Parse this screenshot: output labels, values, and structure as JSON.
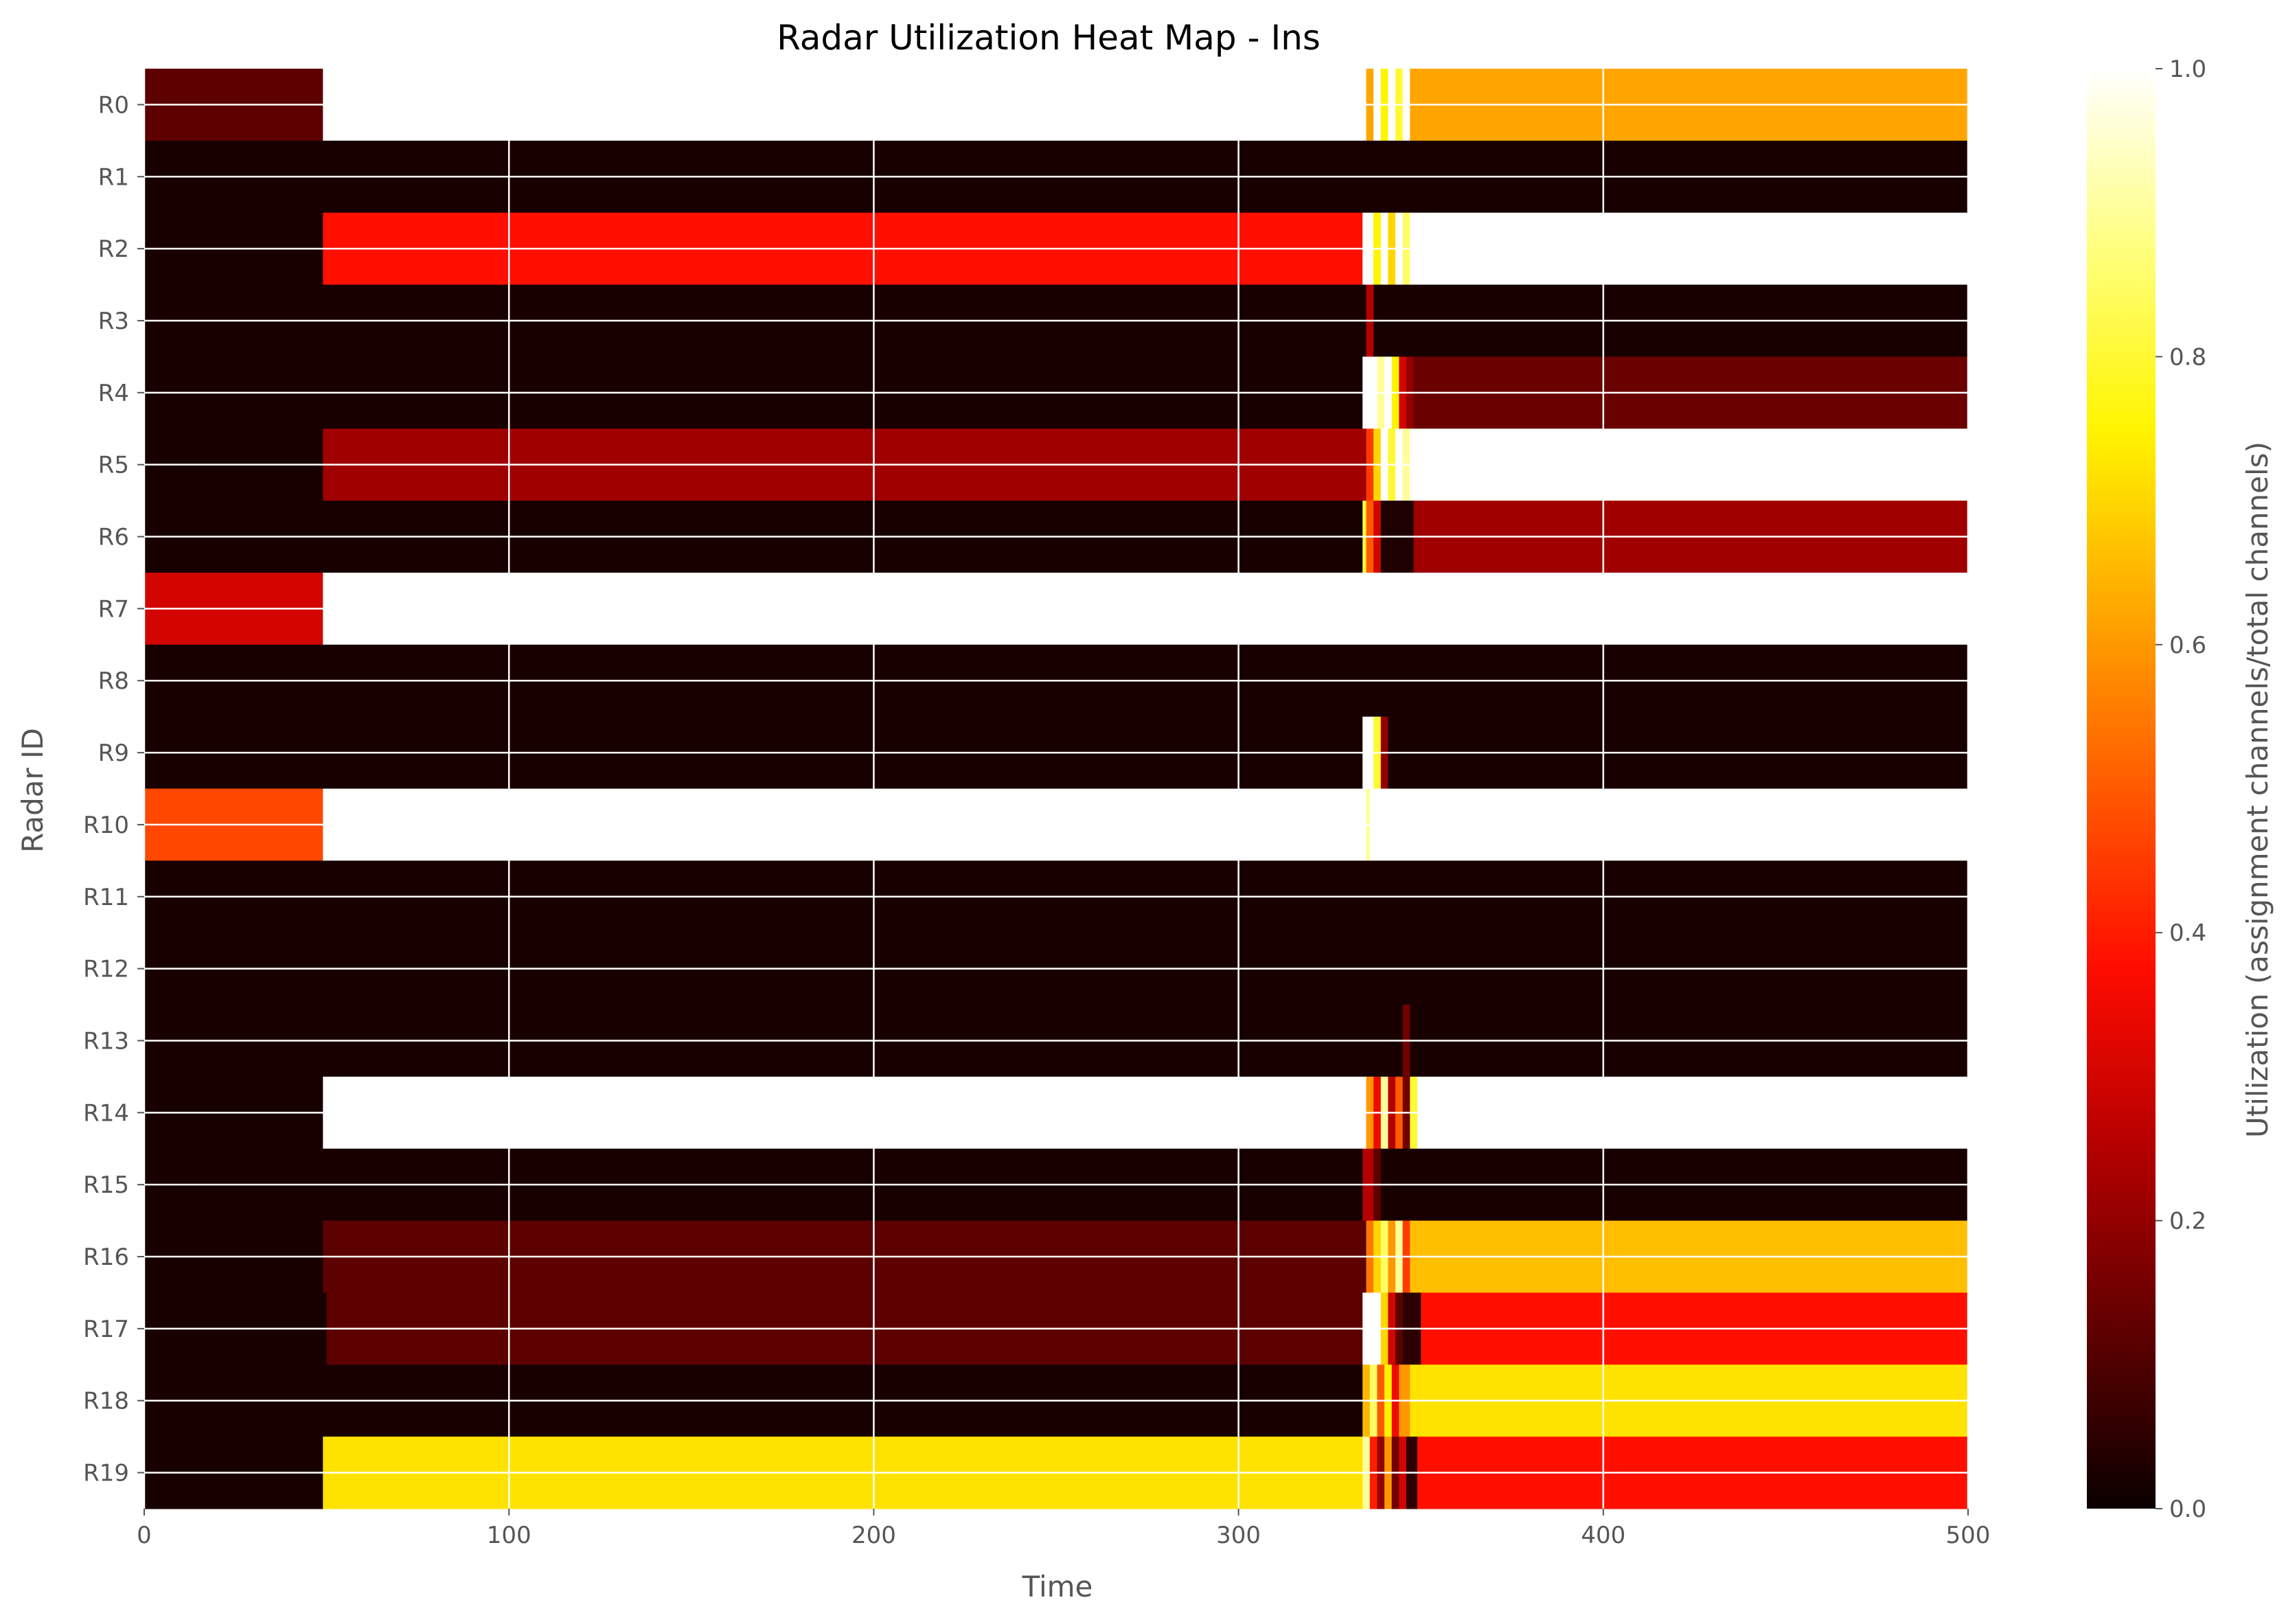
{
  "chart_data": {
    "type": "heatmap",
    "title": "Radar Utilization Heat Map - Ins",
    "xlabel": "Time",
    "ylabel": "Radar ID",
    "colorbar_label": "Utilization (assignment channels/total channels)",
    "colormap": "hot",
    "xlim": [
      0,
      500
    ],
    "clim": [
      0,
      1
    ],
    "x_ticks": [
      0,
      100,
      200,
      300,
      400,
      500
    ],
    "colorbar_ticks": [
      "0.0",
      "0.2",
      "0.4",
      "0.6",
      "0.8",
      "1.0"
    ],
    "grid": true,
    "rows": [
      "R0",
      "R1",
      "R2",
      "R3",
      "R4",
      "R5",
      "R6",
      "R7",
      "R8",
      "R9",
      "R10",
      "R11",
      "R12",
      "R13",
      "R14",
      "R15",
      "R16",
      "R17",
      "R18",
      "R19"
    ],
    "segments": [
      [
        [
          0,
          49,
          0.12
        ],
        [
          49,
          335,
          1.0
        ],
        [
          335,
          337,
          0.62
        ],
        [
          337,
          339,
          1.0
        ],
        [
          339,
          341,
          0.75
        ],
        [
          341,
          343,
          1.0
        ],
        [
          343,
          345,
          0.8
        ],
        [
          345,
          347,
          1.0
        ],
        [
          347,
          500,
          0.62
        ]
      ],
      [
        [
          0,
          500,
          0.02
        ]
      ],
      [
        [
          0,
          49,
          0.02
        ],
        [
          49,
          334,
          0.38
        ],
        [
          334,
          337,
          1.0
        ],
        [
          337,
          339,
          0.75
        ],
        [
          339,
          341,
          1.0
        ],
        [
          341,
          343,
          0.7
        ],
        [
          343,
          345,
          1.0
        ],
        [
          345,
          347,
          0.85
        ],
        [
          347,
          500,
          1.0
        ]
      ],
      [
        [
          0,
          335,
          0.02
        ],
        [
          335,
          337,
          0.25
        ],
        [
          337,
          500,
          0.02
        ]
      ],
      [
        [
          0,
          334,
          0.02
        ],
        [
          334,
          338,
          1.0
        ],
        [
          338,
          340,
          0.9
        ],
        [
          340,
          342,
          1.0
        ],
        [
          342,
          344,
          0.75
        ],
        [
          344,
          346,
          0.3
        ],
        [
          346,
          348,
          0.2
        ],
        [
          348,
          500,
          0.14
        ]
      ],
      [
        [
          0,
          49,
          0.02
        ],
        [
          49,
          335,
          0.22
        ],
        [
          335,
          337,
          0.45
        ],
        [
          337,
          339,
          0.7
        ],
        [
          339,
          341,
          1.0
        ],
        [
          341,
          343,
          0.8
        ],
        [
          343,
          345,
          1.0
        ],
        [
          345,
          347,
          0.9
        ],
        [
          347,
          500,
          1.0
        ]
      ],
      [
        [
          0,
          334,
          0.02
        ],
        [
          334,
          335,
          0.8
        ],
        [
          335,
          337,
          0.5
        ],
        [
          337,
          339,
          0.3
        ],
        [
          339,
          348,
          0.03
        ],
        [
          348,
          500,
          0.22
        ]
      ],
      [
        [
          0,
          49,
          0.3
        ],
        [
          49,
          500,
          1.0
        ]
      ],
      [
        [
          0,
          500,
          0.02
        ]
      ],
      [
        [
          0,
          334,
          0.02
        ],
        [
          334,
          337,
          1.0
        ],
        [
          337,
          339,
          0.8
        ],
        [
          339,
          341,
          0.2
        ],
        [
          341,
          500,
          0.02
        ]
      ],
      [
        [
          0,
          49,
          0.47
        ],
        [
          49,
          335,
          1.0
        ],
        [
          335,
          336,
          0.9
        ],
        [
          336,
          500,
          1.0
        ]
      ],
      [
        [
          0,
          500,
          0.02
        ]
      ],
      [
        [
          0,
          500,
          0.02
        ]
      ],
      [
        [
          0,
          345,
          0.02
        ],
        [
          345,
          347,
          0.15
        ],
        [
          347,
          500,
          0.02
        ]
      ],
      [
        [
          0,
          49,
          0.02
        ],
        [
          49,
          335,
          1.0
        ],
        [
          335,
          337,
          0.6
        ],
        [
          337,
          339,
          0.35
        ],
        [
          339,
          341,
          0.9
        ],
        [
          341,
          343,
          0.25
        ],
        [
          343,
          345,
          0.5
        ],
        [
          345,
          347,
          0.15
        ],
        [
          347,
          349,
          0.8
        ],
        [
          349,
          500,
          1.0
        ]
      ],
      [
        [
          0,
          334,
          0.02
        ],
        [
          334,
          337,
          0.25
        ],
        [
          337,
          339,
          0.12
        ],
        [
          339,
          500,
          0.02
        ]
      ],
      [
        [
          0,
          49,
          0.02
        ],
        [
          49,
          335,
          0.12
        ],
        [
          335,
          337,
          0.55
        ],
        [
          337,
          339,
          0.7
        ],
        [
          339,
          341,
          0.85
        ],
        [
          341,
          343,
          0.6
        ],
        [
          343,
          345,
          0.9
        ],
        [
          345,
          347,
          0.45
        ],
        [
          347,
          500,
          0.66
        ]
      ],
      [
        [
          0,
          50,
          0.02
        ],
        [
          50,
          334,
          0.12
        ],
        [
          334,
          339,
          1.0
        ],
        [
          339,
          341,
          0.7
        ],
        [
          341,
          343,
          0.3
        ],
        [
          343,
          345,
          0.12
        ],
        [
          345,
          350,
          0.05
        ],
        [
          350,
          500,
          0.38
        ]
      ],
      [
        [
          0,
          334,
          0.02
        ],
        [
          334,
          336,
          0.65
        ],
        [
          336,
          338,
          0.85
        ],
        [
          338,
          340,
          0.5
        ],
        [
          340,
          342,
          0.75
        ],
        [
          342,
          344,
          0.35
        ],
        [
          344,
          347,
          0.6
        ],
        [
          347,
          500,
          0.72
        ]
      ],
      [
        [
          0,
          49,
          0.02
        ],
        [
          49,
          334,
          0.72
        ],
        [
          334,
          336,
          0.9
        ],
        [
          336,
          338,
          0.4
        ],
        [
          338,
          340,
          0.2
        ],
        [
          340,
          342,
          0.6
        ],
        [
          342,
          344,
          0.15
        ],
        [
          344,
          346,
          0.3
        ],
        [
          346,
          349,
          0.05
        ],
        [
          349,
          500,
          0.38
        ]
      ]
    ]
  }
}
